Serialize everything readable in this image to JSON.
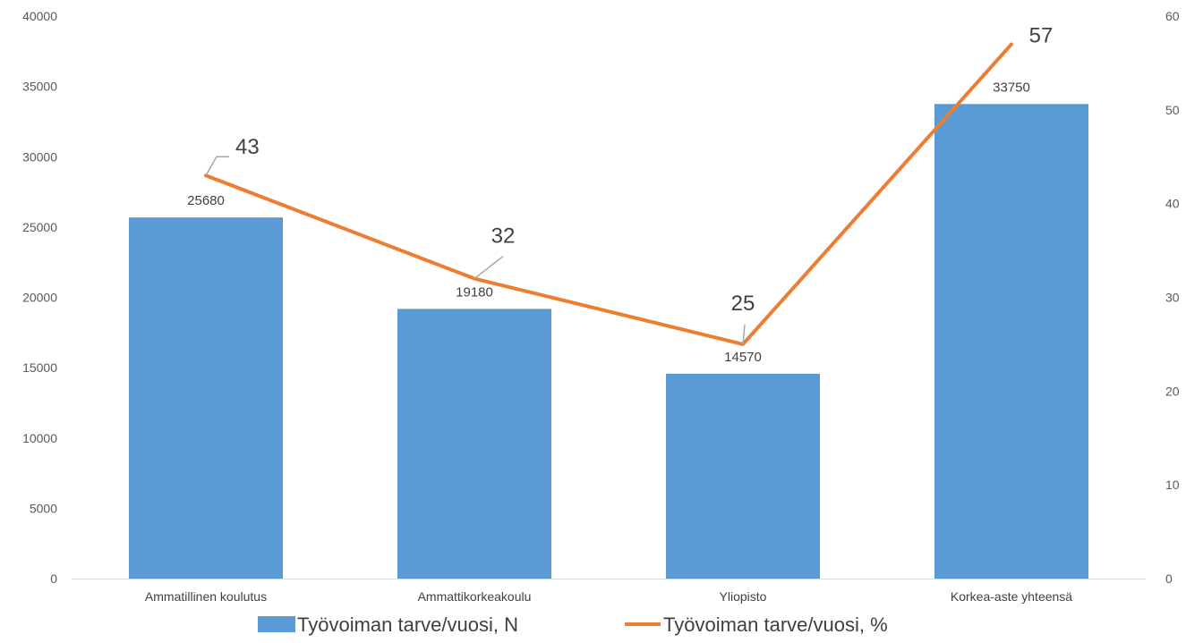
{
  "chart_data": {
    "type": "bar",
    "categories": [
      "Ammatillinen koulutus",
      "Ammattikorkeakoulu",
      "Yliopisto",
      "Korkea-aste yhteensä"
    ],
    "series": [
      {
        "name": "Työvoiman tarve/vuosi, N",
        "type": "bar",
        "axis": "left",
        "values": [
          25680,
          19180,
          14570,
          33750
        ],
        "color": "#5B9BD5"
      },
      {
        "name": "Työvoiman tarve/vuosi, %",
        "type": "line",
        "axis": "right",
        "values": [
          43,
          32,
          25,
          57
        ],
        "color": "#ED7D31"
      }
    ],
    "y_left": {
      "range": [
        0,
        40000
      ],
      "ticks": [
        "0",
        "5000",
        "10000",
        "15000",
        "20000",
        "25000",
        "30000",
        "35000",
        "40000"
      ]
    },
    "y_right": {
      "range": [
        0,
        60
      ],
      "ticks": [
        "0",
        "10",
        "20",
        "30",
        "40",
        "50",
        "60"
      ]
    },
    "bar_labels": [
      "25680",
      "19180",
      "14570",
      "33750"
    ],
    "line_labels": [
      "43",
      "32",
      "25",
      "57"
    ],
    "grid": false,
    "legend": "bottom",
    "leader_color": "#A6A6A6",
    "axis_color": "#D9D9D9"
  }
}
